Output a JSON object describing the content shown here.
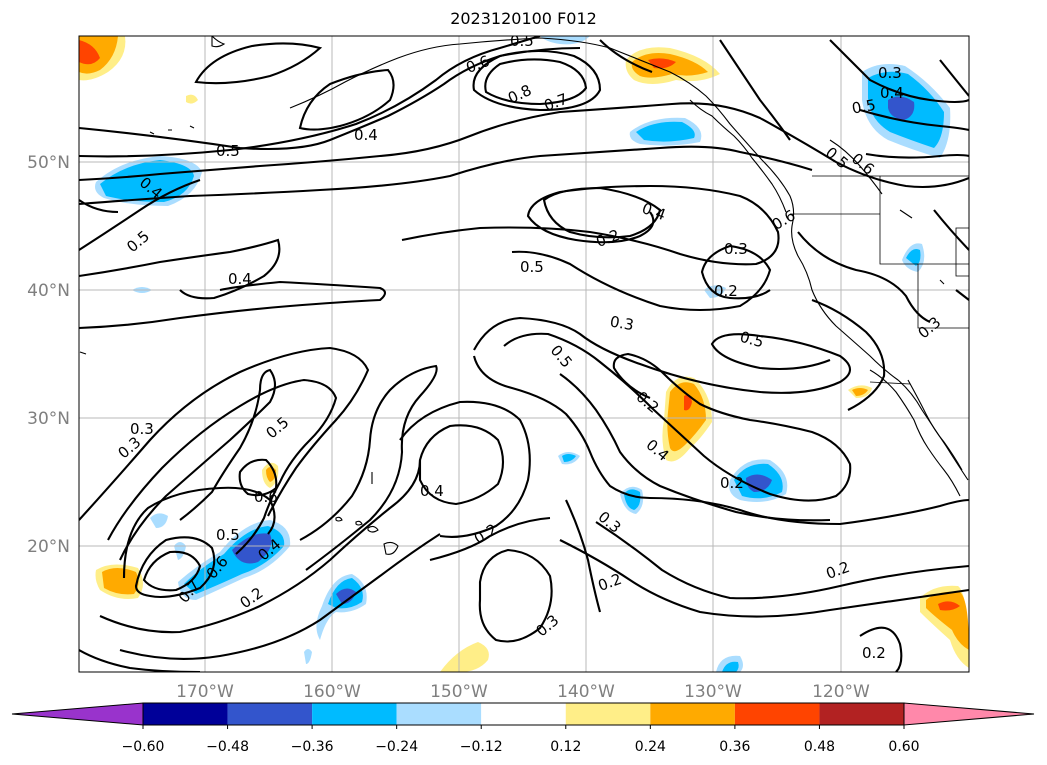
{
  "title": "2023120100 F012",
  "lon_ticks": [
    "170°W",
    "160°W",
    "150°W",
    "140°W",
    "130°W",
    "120°W"
  ],
  "lat_ticks": [
    "50°N",
    "40°N",
    "30°N",
    "20°N"
  ],
  "colorbar": {
    "colors": [
      "#9933cc",
      "#000099",
      "#3355cc",
      "#00bbff",
      "#aaddff",
      "#ffffff",
      "#ffee88",
      "#ffaa00",
      "#ff4400",
      "#b22222",
      "#ff88aa"
    ],
    "tick_labels": [
      "−0.60",
      "−0.48",
      "−0.36",
      "−0.24",
      "−0.12",
      "0.12",
      "0.24",
      "0.36",
      "0.48",
      "0.60"
    ]
  },
  "contour_labels": [
    {
      "text": "0.5"
    },
    {
      "text": "0.6"
    },
    {
      "text": "0.8"
    },
    {
      "text": "0.7"
    },
    {
      "text": "0.4"
    },
    {
      "text": "0.5"
    },
    {
      "text": "0.3"
    },
    {
      "text": "0.4"
    },
    {
      "text": "0.5"
    },
    {
      "text": "0.5"
    },
    {
      "text": "0.6"
    },
    {
      "text": "0.4"
    },
    {
      "text": "0.5"
    },
    {
      "text": "0.4"
    },
    {
      "text": "0.2"
    },
    {
      "text": "0.5"
    },
    {
      "text": "0.3"
    },
    {
      "text": "0.2"
    },
    {
      "text": "0.6"
    },
    {
      "text": "0.4"
    },
    {
      "text": "0.3"
    },
    {
      "text": "0.5"
    },
    {
      "text": "0.5"
    },
    {
      "text": "0.3"
    },
    {
      "text": "0.2"
    },
    {
      "text": "0.4"
    },
    {
      "text": "0.3"
    },
    {
      "text": "0.5"
    },
    {
      "text": "0.6"
    },
    {
      "text": "0.5"
    },
    {
      "text": "0.4"
    },
    {
      "text": "0.2"
    },
    {
      "text": "0.6"
    },
    {
      "text": "0.7"
    },
    {
      "text": "0.2"
    },
    {
      "text": "0.4"
    },
    {
      "text": "0.2"
    },
    {
      "text": "0.3"
    },
    {
      "text": "0.2"
    },
    {
      "text": "0.3"
    },
    {
      "text": "0.2"
    },
    {
      "text": "0.2"
    },
    {
      "text": "0.3"
    }
  ]
}
